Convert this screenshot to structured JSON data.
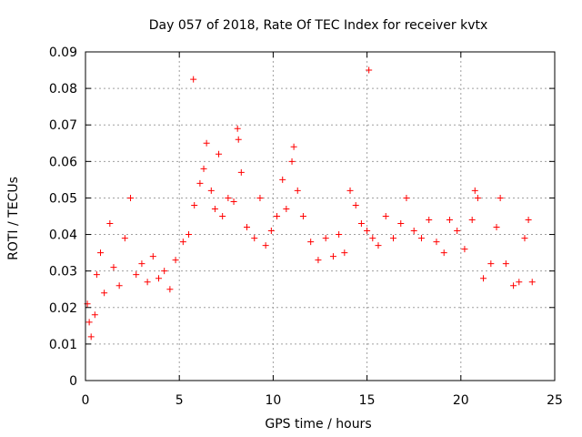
{
  "chart_data": {
    "type": "scatter",
    "title": "Day 057 of 2018, Rate Of TEC Index for receiver kvtx",
    "xlabel": "GPS time / hours",
    "ylabel": "ROTI / TECUs",
    "xlim": [
      0,
      25
    ],
    "ylim": [
      0,
      0.09
    ],
    "x_ticks": [
      "0",
      "5",
      "10",
      "15",
      "20",
      "25"
    ],
    "y_ticks": [
      "0",
      "0.01",
      "0.02",
      "0.03",
      "0.04",
      "0.05",
      "0.06",
      "0.07",
      "0.08",
      "0.09"
    ],
    "grid": true,
    "marker": "+",
    "color": "#ff0000",
    "series": [
      {
        "name": "ROTI",
        "points": [
          [
            0.1,
            0.021
          ],
          [
            0.2,
            0.016
          ],
          [
            0.3,
            0.012
          ],
          [
            0.5,
            0.018
          ],
          [
            0.6,
            0.029
          ],
          [
            0.8,
            0.035
          ],
          [
            1.0,
            0.024
          ],
          [
            1.3,
            0.043
          ],
          [
            1.5,
            0.031
          ],
          [
            1.8,
            0.026
          ],
          [
            2.1,
            0.039
          ],
          [
            2.4,
            0.05
          ],
          [
            2.7,
            0.029
          ],
          [
            3.0,
            0.032
          ],
          [
            3.3,
            0.027
          ],
          [
            3.6,
            0.034
          ],
          [
            3.9,
            0.028
          ],
          [
            4.2,
            0.03
          ],
          [
            4.5,
            0.025
          ],
          [
            4.8,
            0.033
          ],
          [
            5.2,
            0.038
          ],
          [
            5.5,
            0.04
          ],
          [
            5.75,
            0.0825
          ],
          [
            5.8,
            0.048
          ],
          [
            6.1,
            0.054
          ],
          [
            6.3,
            0.058
          ],
          [
            6.45,
            0.065
          ],
          [
            6.7,
            0.052
          ],
          [
            6.9,
            0.047
          ],
          [
            7.1,
            0.062
          ],
          [
            7.3,
            0.045
          ],
          [
            7.6,
            0.05
          ],
          [
            7.9,
            0.049
          ],
          [
            8.1,
            0.069
          ],
          [
            8.15,
            0.066
          ],
          [
            8.3,
            0.057
          ],
          [
            8.6,
            0.042
          ],
          [
            9.0,
            0.039
          ],
          [
            9.3,
            0.05
          ],
          [
            9.6,
            0.037
          ],
          [
            9.9,
            0.041
          ],
          [
            10.2,
            0.045
          ],
          [
            10.5,
            0.055
          ],
          [
            10.7,
            0.047
          ],
          [
            11.0,
            0.06
          ],
          [
            11.1,
            0.064
          ],
          [
            11.3,
            0.052
          ],
          [
            11.6,
            0.045
          ],
          [
            12.0,
            0.038
          ],
          [
            12.4,
            0.033
          ],
          [
            12.8,
            0.039
          ],
          [
            13.2,
            0.034
          ],
          [
            13.5,
            0.04
          ],
          [
            13.8,
            0.035
          ],
          [
            14.1,
            0.052
          ],
          [
            14.4,
            0.048
          ],
          [
            14.7,
            0.043
          ],
          [
            15.0,
            0.041
          ],
          [
            15.1,
            0.085
          ],
          [
            15.3,
            0.039
          ],
          [
            15.6,
            0.037
          ],
          [
            16.0,
            0.045
          ],
          [
            16.4,
            0.039
          ],
          [
            16.8,
            0.043
          ],
          [
            17.1,
            0.05
          ],
          [
            17.5,
            0.041
          ],
          [
            17.9,
            0.039
          ],
          [
            18.3,
            0.044
          ],
          [
            18.7,
            0.038
          ],
          [
            19.1,
            0.035
          ],
          [
            19.4,
            0.044
          ],
          [
            19.8,
            0.041
          ],
          [
            20.2,
            0.036
          ],
          [
            20.6,
            0.044
          ],
          [
            20.75,
            0.052
          ],
          [
            20.9,
            0.05
          ],
          [
            21.2,
            0.028
          ],
          [
            21.6,
            0.032
          ],
          [
            21.9,
            0.042
          ],
          [
            22.1,
            0.05
          ],
          [
            22.4,
            0.032
          ],
          [
            22.8,
            0.026
          ],
          [
            23.1,
            0.027
          ],
          [
            23.4,
            0.039
          ],
          [
            23.6,
            0.044
          ],
          [
            23.8,
            0.027
          ]
        ]
      }
    ]
  }
}
